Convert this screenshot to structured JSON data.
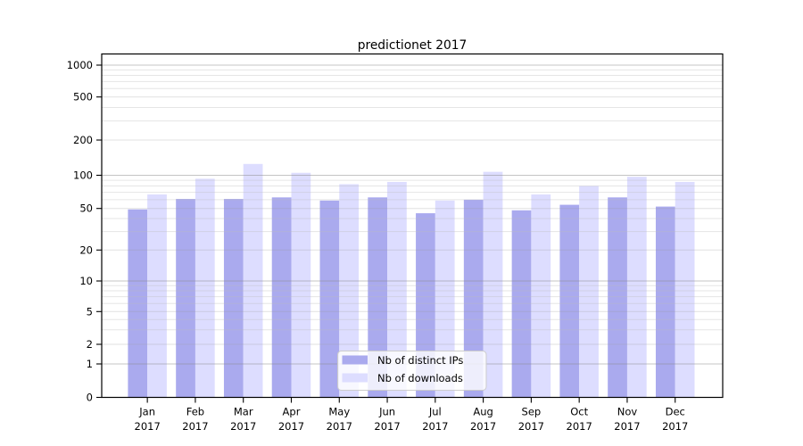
{
  "figure": {
    "background_color": "#ffffff"
  },
  "chart_data": {
    "type": "bar",
    "title": "predictionet 2017",
    "xlabel": "",
    "ylabel": "",
    "categories": [
      "Jan",
      "Feb",
      "Mar",
      "Apr",
      "May",
      "Jun",
      "Jul",
      "Aug",
      "Sep",
      "Oct",
      "Nov",
      "Dec"
    ],
    "x_tick_line2": "2017",
    "series": [
      {
        "name": "Nb of distinct IPs",
        "color": "#aaaaee",
        "values": [
          49,
          61,
          61,
          63,
          59,
          63,
          45,
          60,
          48,
          54,
          63,
          52
        ]
      },
      {
        "name": "Nb of downloads",
        "color": "#ddddff",
        "values": [
          67,
          93,
          125,
          105,
          83,
          87,
          59,
          107,
          67,
          80,
          97,
          87
        ]
      }
    ],
    "y_ticks": [
      0,
      1,
      2,
      5,
      10,
      20,
      50,
      100,
      200,
      500,
      1000
    ],
    "y_minor_ticks": [
      3,
      4,
      6,
      7,
      8,
      9,
      30,
      40,
      60,
      70,
      80,
      90,
      300,
      400,
      600,
      700,
      800,
      900
    ],
    "y_scale": "log-like (0 baseline plus log decades)",
    "ylim": [
      0,
      1300
    ],
    "grid": true,
    "legend": {
      "position": "inside-bottom-center"
    }
  }
}
